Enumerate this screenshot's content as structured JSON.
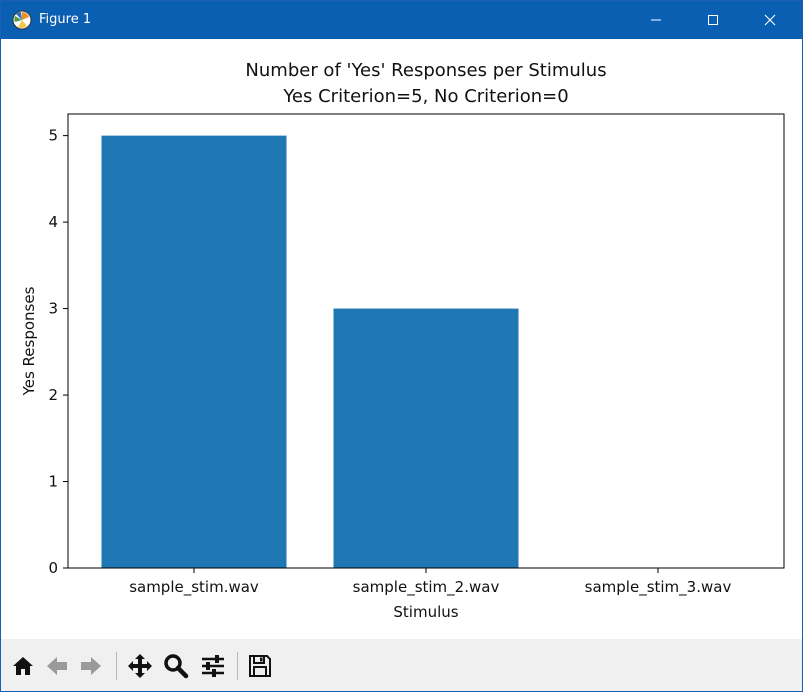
{
  "window": {
    "title": "Figure 1",
    "buttons": {
      "minimize_icon": "minimize-icon",
      "maximize_icon": "maximize-icon",
      "close_icon": "close-icon"
    }
  },
  "chart_data": {
    "type": "bar",
    "title": "Number of 'Yes' Responses per Stimulus",
    "subtitle": "Yes Criterion=5, No Criterion=0",
    "xlabel": "Stimulus",
    "ylabel": "Yes Responses",
    "categories": [
      "sample_stim.wav",
      "sample_stim_2.wav",
      "sample_stim_3.wav"
    ],
    "values": [
      5,
      3,
      0
    ],
    "yticks": [
      "0",
      "1",
      "2",
      "3",
      "4",
      "5"
    ],
    "ylim": [
      0,
      5.25
    ],
    "bar_color": "#1f77b4",
    "grid": false,
    "legend": "none"
  },
  "toolbar": {
    "icons": [
      "home-icon",
      "back-arrow-icon",
      "forward-arrow-icon",
      "pan-icon",
      "zoom-icon",
      "configure-subplots-icon",
      "save-icon"
    ]
  }
}
